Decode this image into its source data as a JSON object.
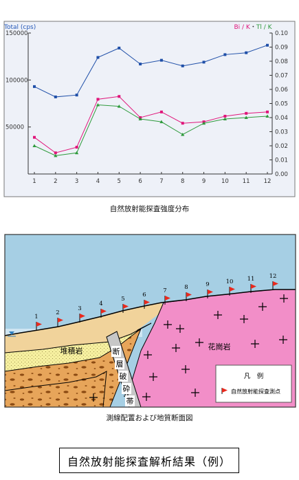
{
  "chart_data": {
    "type": "line",
    "title": "",
    "left_axis_label": "Total (cps)",
    "right_axis_label": {
      "bi": "Bi / K",
      "sep": "・",
      "tl": "Tl / K"
    },
    "x": [
      1,
      2,
      3,
      4,
      5,
      6,
      7,
      8,
      9,
      10,
      11,
      12
    ],
    "left_ylim": [
      0,
      150000
    ],
    "left_ticks": [
      "0",
      "50000",
      "100000",
      "150000"
    ],
    "right_ylim": [
      0,
      0.1
    ],
    "right_ticks": [
      "0.00",
      "0.01",
      "0.02",
      "0.03",
      "0.04",
      "0.05",
      "0.06",
      "0.07",
      "0.08",
      "0.09",
      "0.10"
    ],
    "series": [
      {
        "key": "total",
        "axis": "left",
        "color": "#1f4fa8",
        "values": [
          93000,
          82000,
          84000,
          124000,
          134000,
          117000,
          121000,
          115000,
          119000,
          127000,
          129000,
          137000
        ]
      },
      {
        "key": "bi_k",
        "axis": "right",
        "color": "#e0157a",
        "values": [
          0.026,
          0.015,
          0.019,
          0.053,
          0.055,
          0.04,
          0.044,
          0.036,
          0.037,
          0.041,
          0.043,
          0.044
        ]
      },
      {
        "key": "tl_k",
        "axis": "right",
        "color": "#2e9a3c",
        "values": [
          0.02,
          0.013,
          0.015,
          0.049,
          0.048,
          0.039,
          0.037,
          0.028,
          0.036,
          0.039,
          0.04,
          0.041
        ]
      }
    ],
    "grid": false,
    "caption": "自然放射能探査強度分布"
  },
  "section": {
    "labels": {
      "sedimentary_rock": "堆積岩",
      "granite": "花崗岩",
      "fault_zone": [
        "断",
        "層",
        "破",
        "砕",
        "帯"
      ]
    },
    "station_numbers": [
      "1",
      "2",
      "3",
      "4",
      "5",
      "6",
      "7",
      "8",
      "9",
      "10",
      "11",
      "12"
    ],
    "legend": {
      "title": "凡　例",
      "entry": "自然放射能探査測点"
    },
    "colors": {
      "flag": "#e8291d",
      "granite": "#f28ec8",
      "sand": "#f1d39b",
      "yellow": "#f6f0a0",
      "gravel": "#e7a55a",
      "sky": "#a6cfe4",
      "water": "#2e7fc0"
    },
    "caption": "測線配置および地質断面図"
  },
  "footer": {
    "title": "自然放射能探査解析結果（例）"
  }
}
